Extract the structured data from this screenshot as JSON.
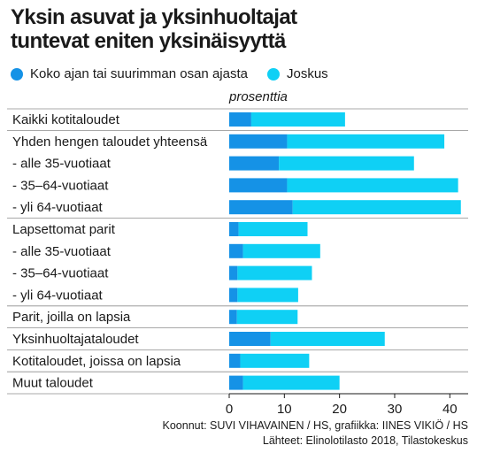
{
  "title_lines": [
    "Yksin asuvat ja yksinhuoltajat",
    "tuntevat eniten yksinäisyyttä"
  ],
  "colors": {
    "series1": "#1592e6",
    "series2": "#0fd0f5",
    "separator": "#8c8c8c",
    "axis": "#1a1a1a",
    "text": "#1a1a1a"
  },
  "footer": {
    "line1": "Koonnut: SUVI VIHAVAINEN / HS, grafiikka: IINES VIKIÖ / HS",
    "line2": "Lähteet: Elinolotilasto 2018, Tilastokeskus"
  },
  "chart_data": {
    "type": "bar",
    "orientation": "horizontal",
    "stacked": true,
    "unit_label": "prosenttia",
    "categories": [
      "Kaikki kotitaloudet",
      "Yhden hengen taloudet yhteensä",
      "- alle 35-vuotiaat",
      "- 35–64-vuotiaat",
      "- yli 64-vuotiaat",
      "Lapsettomat parit",
      "- alle 35-vuotiaat",
      "- 35–64-vuotiaat",
      "- yli 64-vuotiaat",
      "Parit, joilla on lapsia",
      "Yksinhuoltajataloudet",
      "Kotitaloudet, joissa on lapsia",
      "Muut taloudet"
    ],
    "series": [
      {
        "name": "Koko ajan tai suurimman osan ajasta",
        "values": [
          4,
          10.5,
          9,
          10.5,
          11.5,
          1.7,
          2.5,
          1.5,
          1.5,
          1.4,
          7.5,
          2,
          2.5
        ]
      },
      {
        "name": "Joskus",
        "values": [
          17,
          28.5,
          24.5,
          31,
          30.5,
          12.5,
          14,
          13.5,
          11,
          11,
          20.7,
          12.5,
          17.5
        ]
      }
    ],
    "xlim": [
      0,
      43
    ],
    "xticks": [
      0,
      10,
      20,
      30,
      40
    ],
    "gridlines": false,
    "legend_position": "top-left"
  }
}
